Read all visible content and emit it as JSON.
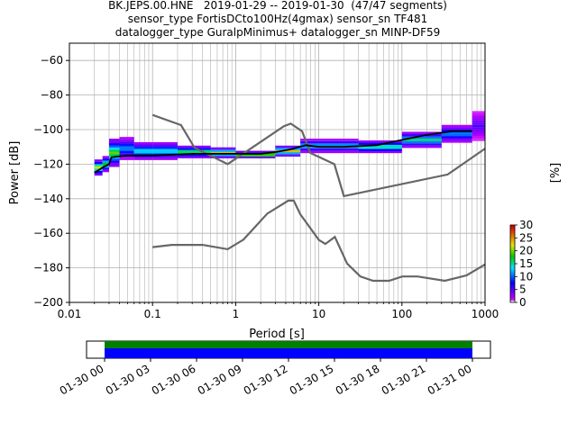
{
  "title_lines": [
    "BK.JEPS.00.HNE   2019-01-29 -- 2019-01-30  (47/47 segments)",
    "sensor_type FortisDCto100Hz(4gmax) sensor_sn TF481",
    "datalogger_type GuralpMinimus+ datalogger_sn MINP-DF59"
  ],
  "chart_data": {
    "type": "heatmap",
    "xlabel": "Period [s]",
    "ylabel": "Power [dB]",
    "xscale": "log",
    "xlim": [
      0.01,
      1000
    ],
    "ylim": [
      -200,
      -50
    ],
    "xticks": [
      {
        "v": 0.01,
        "label": "0.01"
      },
      {
        "v": 0.1,
        "label": "0.1"
      },
      {
        "v": 1,
        "label": "1"
      },
      {
        "v": 10,
        "label": "10"
      },
      {
        "v": 100,
        "label": "100"
      },
      {
        "v": 1000,
        "label": "1000"
      }
    ],
    "yticks": [
      {
        "v": -60,
        "label": "−60"
      },
      {
        "v": -80,
        "label": "−80"
      },
      {
        "v": -100,
        "label": "−100"
      },
      {
        "v": -120,
        "label": "−120"
      },
      {
        "v": -140,
        "label": "−140"
      },
      {
        "v": -160,
        "label": "−160"
      },
      {
        "v": -180,
        "label": "−180"
      },
      {
        "v": -200,
        "label": "−200"
      }
    ],
    "grid": true,
    "colorbar": {
      "label": "[%]",
      "min": 0,
      "max": 30,
      "ticks": [
        "0",
        "5",
        "10",
        "15",
        "20",
        "25",
        "30"
      ]
    },
    "noise_models": {
      "high": [
        [
          0.1,
          -91.5
        ],
        [
          0.22,
          -97.4
        ],
        [
          0.32,
          -110.5
        ],
        [
          0.8,
          -120
        ],
        [
          3.8,
          -98
        ],
        [
          4.6,
          -96.5
        ],
        [
          6.3,
          -101
        ],
        [
          7.9,
          -113.5
        ],
        [
          15.4,
          -120
        ],
        [
          20,
          -138.5
        ],
        [
          354.8,
          -126
        ],
        [
          1000,
          -111
        ]
      ],
      "low": [
        [
          0.1,
          -168
        ],
        [
          0.17,
          -166.7
        ],
        [
          0.4,
          -166.7
        ],
        [
          0.8,
          -169.2
        ],
        [
          1.24,
          -163.7
        ],
        [
          2.4,
          -148.6
        ],
        [
          4.3,
          -141.1
        ],
        [
          5,
          -141.1
        ],
        [
          6,
          -149
        ],
        [
          10,
          -163.8
        ],
        [
          12,
          -166.2
        ],
        [
          15.6,
          -162.1
        ],
        [
          21.9,
          -177.5
        ],
        [
          31.6,
          -185
        ],
        [
          45,
          -187.5
        ],
        [
          70,
          -187.5
        ],
        [
          101,
          -185
        ],
        [
          154,
          -185
        ],
        [
          328,
          -187.5
        ],
        [
          600,
          -184.4
        ],
        [
          1000,
          -178
        ]
      ]
    },
    "mean_psd": [
      [
        0.02,
        -125
      ],
      [
        0.025,
        -122
      ],
      [
        0.03,
        -120
      ],
      [
        0.032,
        -116
      ],
      [
        0.05,
        -115
      ],
      [
        0.1,
        -115
      ],
      [
        0.3,
        -114
      ],
      [
        1,
        -114
      ],
      [
        2,
        -114
      ],
      [
        3,
        -113
      ],
      [
        4,
        -112
      ],
      [
        5,
        -111
      ],
      [
        7,
        -109
      ],
      [
        10,
        -110
      ],
      [
        20,
        -110
      ],
      [
        50,
        -109
      ],
      [
        100,
        -106
      ],
      [
        200,
        -103
      ],
      [
        400,
        -101
      ],
      [
        700,
        -101
      ]
    ],
    "psd_density": [
      {
        "period": 0.02,
        "spread": [
          -126,
          -118
        ],
        "level": 22
      },
      {
        "period": 0.025,
        "spread": [
          -124,
          -116
        ],
        "level": 18
      },
      {
        "period": 0.03,
        "spread": [
          -121,
          -106
        ],
        "level": 20
      },
      {
        "period": 0.04,
        "spread": [
          -117,
          -105
        ],
        "level": 12
      },
      {
        "period": 0.06,
        "spread": [
          -117,
          -108
        ],
        "level": 15
      },
      {
        "period": 0.1,
        "spread": [
          -117,
          -108
        ],
        "level": 15
      },
      {
        "period": 0.2,
        "spread": [
          -116,
          -110
        ],
        "level": 20
      },
      {
        "period": 0.5,
        "spread": [
          -116,
          -111
        ],
        "level": 24
      },
      {
        "period": 1,
        "spread": [
          -116,
          -113
        ],
        "level": 28
      },
      {
        "period": 3,
        "spread": [
          -115,
          -110
        ],
        "level": 24
      },
      {
        "period": 6,
        "spread": [
          -113,
          -106
        ],
        "level": 14
      },
      {
        "period": 10,
        "spread": [
          -113,
          -106
        ],
        "level": 14
      },
      {
        "period": 30,
        "spread": [
          -113,
          -107
        ],
        "level": 18
      },
      {
        "period": 100,
        "spread": [
          -110,
          -102
        ],
        "level": 16
      },
      {
        "period": 300,
        "spread": [
          -107,
          -98
        ],
        "level": 12
      },
      {
        "period": 700,
        "spread": [
          -106,
          -90
        ],
        "level": 5
      }
    ],
    "availability": {
      "xticks": [
        "01-30 00",
        "01-30 03",
        "01-30 06",
        "01-30 09",
        "01-30 12",
        "01-30 15",
        "01-30 18",
        "01-30 21",
        "01-31 00"
      ],
      "bars": [
        {
          "name": "data",
          "color": "#0000ff",
          "start_hour": 0,
          "end_hour": 24
        },
        {
          "name": "psd",
          "color": "#008000",
          "start_hour": 0,
          "end_hour": 24
        }
      ]
    }
  }
}
